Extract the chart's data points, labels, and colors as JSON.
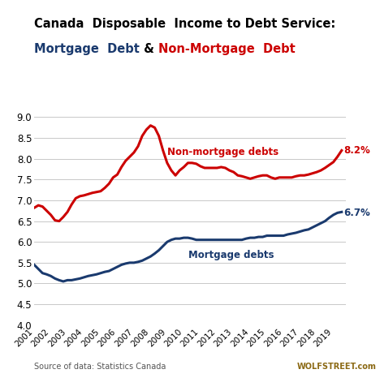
{
  "title_line1": "Canada  Disposable  Income to Debt Service:",
  "title_line2_part1": "Mortgage  Debt",
  "title_line2_part2": " & ",
  "title_line2_part3": "Non-Mortgage  Debt",
  "source_left": "Source of data: Statistics Canada",
  "source_right": "WOLFSTREET.com",
  "ylim": [
    4.0,
    9.0
  ],
  "yticks": [
    4.0,
    4.5,
    5.0,
    5.5,
    6.0,
    6.5,
    7.0,
    7.5,
    8.0,
    8.5,
    9.0
  ],
  "mortgage_color": "#1a3a6e",
  "non_mortgage_color": "#cc0000",
  "mortgage_label": "Mortgage debts",
  "non_mortgage_label": "Non-mortgage debts",
  "mortgage_end_label": "6.7%",
  "non_mortgage_end_label": "8.2%",
  "mortgage_x": [
    2001.0,
    2001.25,
    2001.5,
    2001.75,
    2002.0,
    2002.25,
    2002.5,
    2002.75,
    2003.0,
    2003.25,
    2003.5,
    2003.75,
    2004.0,
    2004.25,
    2004.5,
    2004.75,
    2005.0,
    2005.25,
    2005.5,
    2005.75,
    2006.0,
    2006.25,
    2006.5,
    2006.75,
    2007.0,
    2007.25,
    2007.5,
    2007.75,
    2008.0,
    2008.25,
    2008.5,
    2008.75,
    2009.0,
    2009.25,
    2009.5,
    2009.75,
    2010.0,
    2010.25,
    2010.5,
    2010.75,
    2011.0,
    2011.25,
    2011.5,
    2011.75,
    2012.0,
    2012.25,
    2012.5,
    2012.75,
    2013.0,
    2013.25,
    2013.5,
    2013.75,
    2014.0,
    2014.25,
    2014.5,
    2014.75,
    2015.0,
    2015.25,
    2015.5,
    2015.75,
    2016.0,
    2016.25,
    2016.5,
    2016.75,
    2017.0,
    2017.25,
    2017.5,
    2017.75,
    2018.0,
    2018.25,
    2018.5,
    2018.75,
    2019.0,
    2019.25,
    2019.5
  ],
  "mortgage_y": [
    5.45,
    5.35,
    5.25,
    5.22,
    5.18,
    5.12,
    5.08,
    5.05,
    5.08,
    5.08,
    5.1,
    5.12,
    5.15,
    5.18,
    5.2,
    5.22,
    5.25,
    5.28,
    5.3,
    5.35,
    5.4,
    5.45,
    5.48,
    5.5,
    5.5,
    5.52,
    5.55,
    5.6,
    5.65,
    5.72,
    5.8,
    5.9,
    6.0,
    6.05,
    6.08,
    6.08,
    6.1,
    6.1,
    6.08,
    6.05,
    6.05,
    6.05,
    6.05,
    6.05,
    6.05,
    6.05,
    6.05,
    6.05,
    6.05,
    6.05,
    6.05,
    6.08,
    6.1,
    6.1,
    6.12,
    6.12,
    6.15,
    6.15,
    6.15,
    6.15,
    6.15,
    6.18,
    6.2,
    6.22,
    6.25,
    6.28,
    6.3,
    6.35,
    6.4,
    6.45,
    6.5,
    6.58,
    6.65,
    6.7,
    6.72
  ],
  "non_mortgage_x": [
    2001.0,
    2001.25,
    2001.5,
    2001.75,
    2002.0,
    2002.25,
    2002.5,
    2002.75,
    2003.0,
    2003.25,
    2003.5,
    2003.75,
    2004.0,
    2004.25,
    2004.5,
    2004.75,
    2005.0,
    2005.25,
    2005.5,
    2005.75,
    2006.0,
    2006.25,
    2006.5,
    2006.75,
    2007.0,
    2007.25,
    2007.5,
    2007.75,
    2008.0,
    2008.25,
    2008.5,
    2008.75,
    2009.0,
    2009.25,
    2009.5,
    2009.75,
    2010.0,
    2010.25,
    2010.5,
    2010.75,
    2011.0,
    2011.25,
    2011.5,
    2011.75,
    2012.0,
    2012.25,
    2012.5,
    2012.75,
    2013.0,
    2013.25,
    2013.5,
    2013.75,
    2014.0,
    2014.25,
    2014.5,
    2014.75,
    2015.0,
    2015.25,
    2015.5,
    2015.75,
    2016.0,
    2016.25,
    2016.5,
    2016.75,
    2017.0,
    2017.25,
    2017.5,
    2017.75,
    2018.0,
    2018.25,
    2018.5,
    2018.75,
    2019.0,
    2019.25,
    2019.5
  ],
  "non_mortgage_y": [
    6.82,
    6.88,
    6.85,
    6.75,
    6.65,
    6.52,
    6.5,
    6.6,
    6.72,
    6.9,
    7.05,
    7.1,
    7.12,
    7.15,
    7.18,
    7.2,
    7.22,
    7.3,
    7.4,
    7.55,
    7.62,
    7.8,
    7.95,
    8.05,
    8.15,
    8.3,
    8.55,
    8.7,
    8.8,
    8.75,
    8.55,
    8.2,
    7.9,
    7.72,
    7.6,
    7.72,
    7.8,
    7.9,
    7.9,
    7.88,
    7.82,
    7.78,
    7.78,
    7.78,
    7.78,
    7.8,
    7.78,
    7.72,
    7.68,
    7.6,
    7.58,
    7.55,
    7.52,
    7.55,
    7.58,
    7.6,
    7.6,
    7.55,
    7.52,
    7.55,
    7.55,
    7.55,
    7.55,
    7.58,
    7.6,
    7.6,
    7.62,
    7.65,
    7.68,
    7.72,
    7.78,
    7.85,
    7.92,
    8.05,
    8.2
  ],
  "bg_color": "#ffffff",
  "grid_color": "#c8c8c8",
  "line_width": 2.2
}
